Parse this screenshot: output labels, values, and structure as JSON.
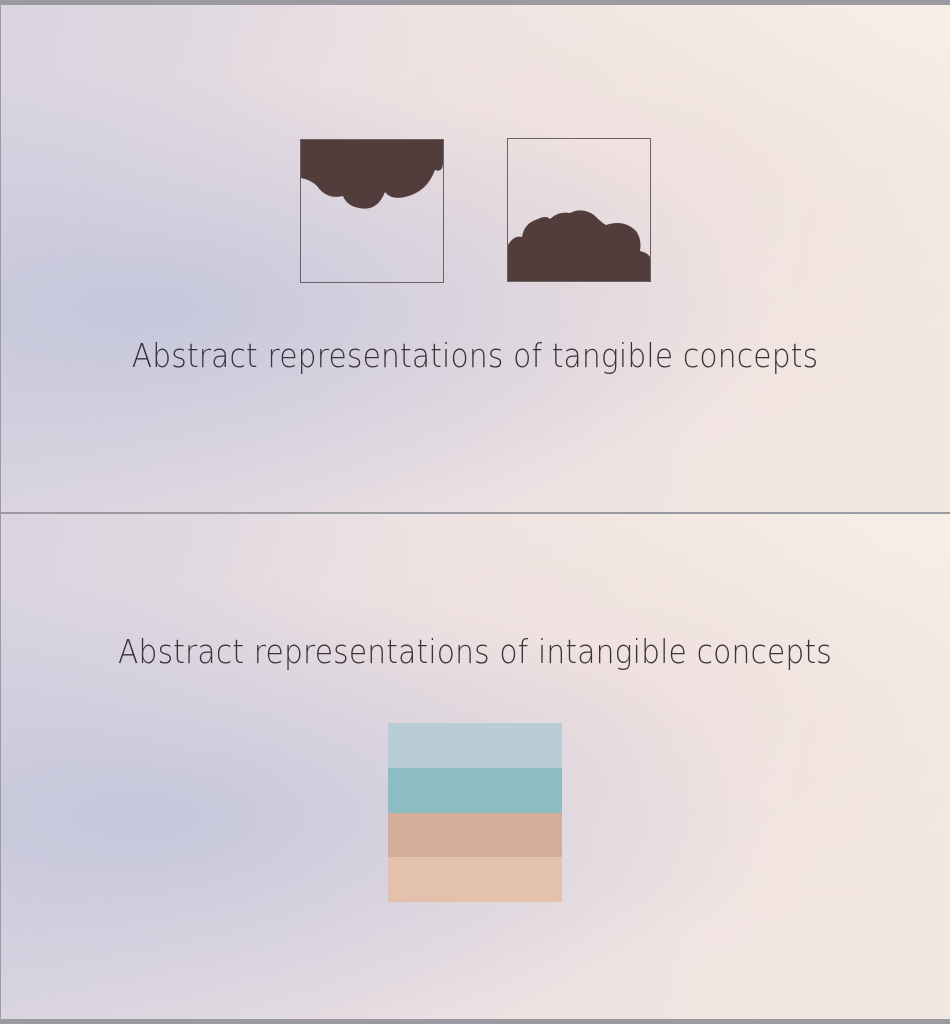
{
  "slides": [
    {
      "caption": "Abstract representations of tangible concepts",
      "icons": [
        "clouds-hanging-icon",
        "clouds-rising-icon"
      ],
      "icon_fill": "#523d3d"
    },
    {
      "caption": "Abstract representations of intangible concepts",
      "stripe_colors": [
        "#b8cdd5",
        "#8dbcc3",
        "#d4ac97",
        "#e3c1aa"
      ]
    }
  ]
}
